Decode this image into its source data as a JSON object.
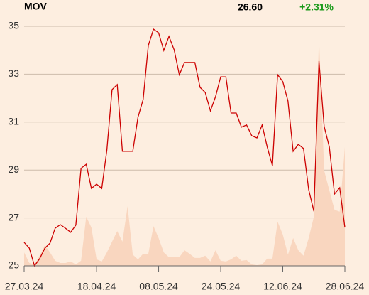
{
  "header": {
    "symbol": "MOV",
    "price": "26.60",
    "change": "+2.31%"
  },
  "chart_data": {
    "type": "line",
    "categories": [
      "27.03.24",
      null,
      null,
      null,
      null,
      null,
      null,
      null,
      null,
      null,
      null,
      null,
      null,
      null,
      "18.04.24",
      null,
      null,
      null,
      null,
      null,
      null,
      null,
      null,
      null,
      null,
      null,
      "08.05.24",
      null,
      null,
      null,
      null,
      null,
      null,
      null,
      null,
      null,
      null,
      null,
      "24.05.24",
      null,
      null,
      null,
      null,
      null,
      null,
      null,
      null,
      null,
      null,
      null,
      "12.06.24",
      null,
      null,
      null,
      null,
      null,
      null,
      null,
      null,
      null,
      null,
      null,
      "28.06.24"
    ],
    "series": [
      {
        "name": "price",
        "color": "#cc0000",
        "values": [
          25.98,
          25.74,
          25.0,
          25.3,
          25.74,
          25.95,
          26.57,
          26.72,
          26.57,
          26.4,
          26.7,
          29.07,
          29.24,
          28.23,
          28.41,
          28.23,
          29.84,
          32.36,
          32.57,
          29.78,
          29.78,
          29.78,
          31.2,
          31.94,
          34.2,
          34.88,
          34.73,
          33.99,
          34.58,
          34.02,
          32.98,
          33.49,
          33.49,
          33.49,
          32.45,
          32.24,
          31.47,
          32.06,
          32.89,
          32.89,
          31.38,
          31.38,
          30.79,
          30.88,
          30.43,
          30.34,
          30.88,
          29.96,
          29.18,
          32.98,
          32.69,
          31.88,
          29.78,
          30.07,
          29.9,
          28.18,
          27.28,
          33.55,
          30.82,
          29.96,
          28.0,
          28.26,
          26.6
        ]
      },
      {
        "name": "volume",
        "color": "#f9d6bf",
        "values": [
          25.56,
          25.12,
          25.06,
          25.42,
          25.86,
          25.56,
          25.21,
          25.12,
          25.12,
          25.18,
          25.06,
          25.21,
          27.05,
          26.6,
          25.27,
          25.18,
          25.56,
          26.01,
          26.45,
          26.01,
          27.49,
          25.47,
          25.27,
          25.5,
          25.5,
          26.66,
          26.16,
          25.56,
          25.36,
          25.36,
          25.36,
          25.65,
          25.5,
          25.33,
          25.33,
          25.42,
          25.18,
          25.65,
          25.21,
          25.18,
          25.27,
          25.42,
          25.21,
          25.24,
          25.06,
          25.03,
          25.06,
          25.3,
          25.3,
          26.84,
          26.31,
          25.47,
          26.16,
          25.65,
          25.42,
          26.16,
          27.05,
          34.55,
          28.98,
          28.15,
          27.34,
          27.26,
          29.96
        ]
      }
    ],
    "ylim": [
      25,
      35.5
    ],
    "yticks": [
      25,
      27,
      29,
      31,
      33,
      35
    ],
    "grid": true
  }
}
